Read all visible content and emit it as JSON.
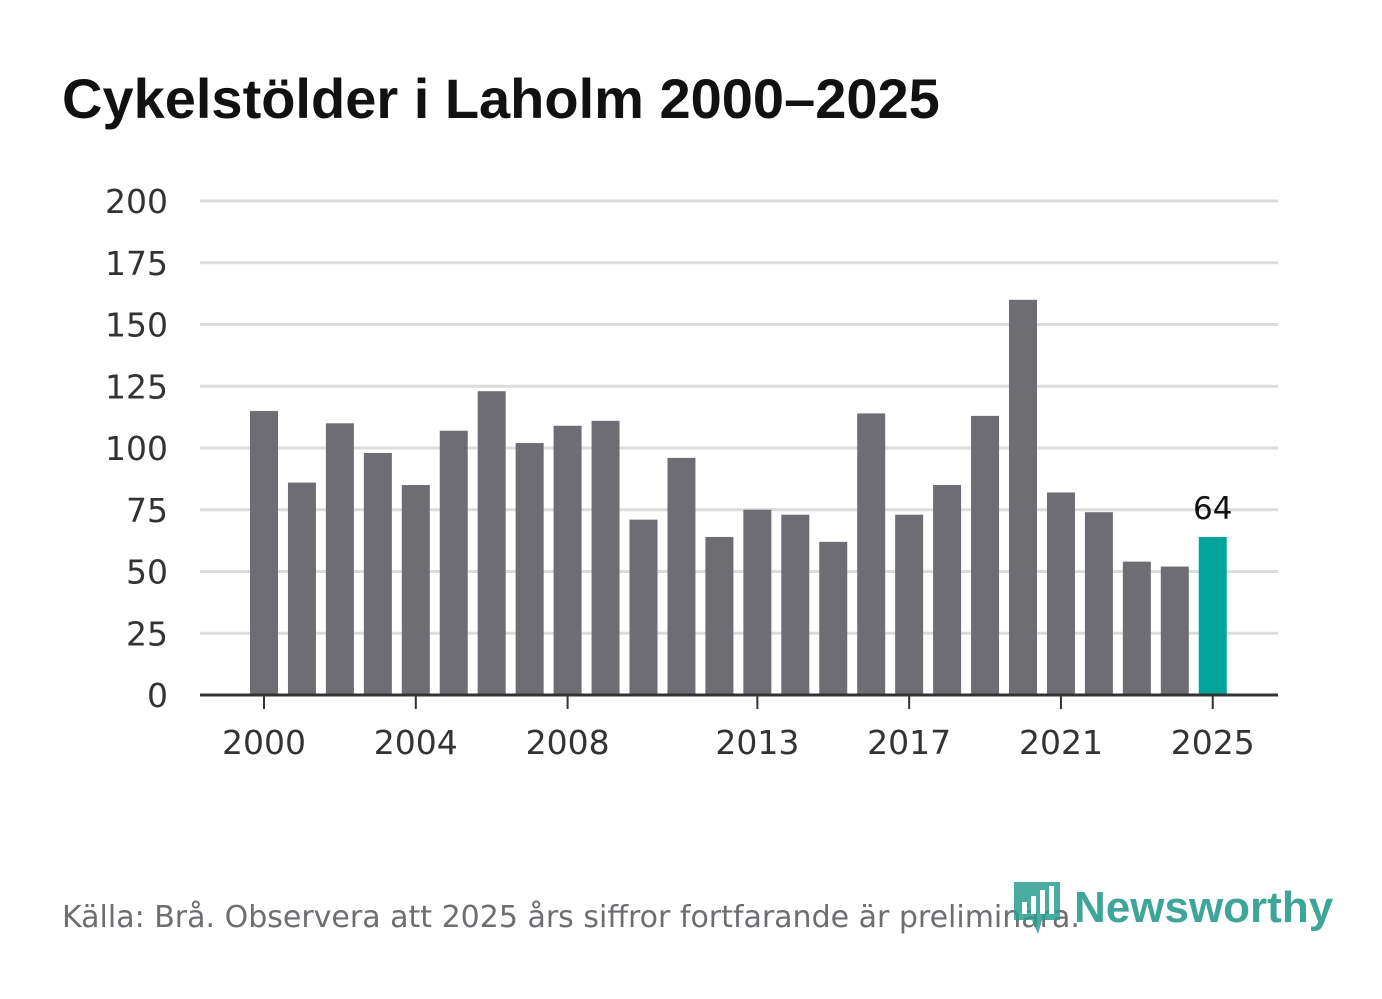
{
  "chart_data": {
    "type": "bar",
    "title": "Cykelstölder i Laholm 2000–2025",
    "xlabel": "",
    "ylabel": "",
    "ylim": [
      0,
      200
    ],
    "yticks": [
      "0",
      "25",
      "50",
      "75",
      "100",
      "125",
      "150",
      "175",
      "200"
    ],
    "xtick_labels": [
      "2000",
      "2004",
      "2008",
      "2013",
      "2017",
      "2021",
      "2025"
    ],
    "categories": [
      "2000",
      "2001",
      "2002",
      "2003",
      "2004",
      "2005",
      "2006",
      "2007",
      "2008",
      "2009",
      "2010",
      "2011",
      "2012",
      "2013",
      "2014",
      "2015",
      "2016",
      "2017",
      "2018",
      "2019",
      "2020",
      "2021",
      "2022",
      "2023",
      "2024",
      "2025"
    ],
    "values": [
      115,
      86,
      110,
      98,
      85,
      107,
      123,
      102,
      109,
      111,
      71,
      96,
      64,
      75,
      73,
      62,
      114,
      73,
      85,
      113,
      160,
      82,
      74,
      54,
      52,
      64
    ],
    "highlight": {
      "category": "2025",
      "label": "64"
    },
    "colors": {
      "bar": "#6e6d73",
      "highlight": "#00a69c",
      "grid": "#dcdcdc",
      "axis": "#333333"
    },
    "grid": true
  },
  "source": "Källa: Brå. Observera att 2025 års siffror fortfarande är preliminära.",
  "logo": {
    "text": "Newsworthy",
    "icon": "newsworthy-logo-icon",
    "color": "#2a9d8f"
  }
}
